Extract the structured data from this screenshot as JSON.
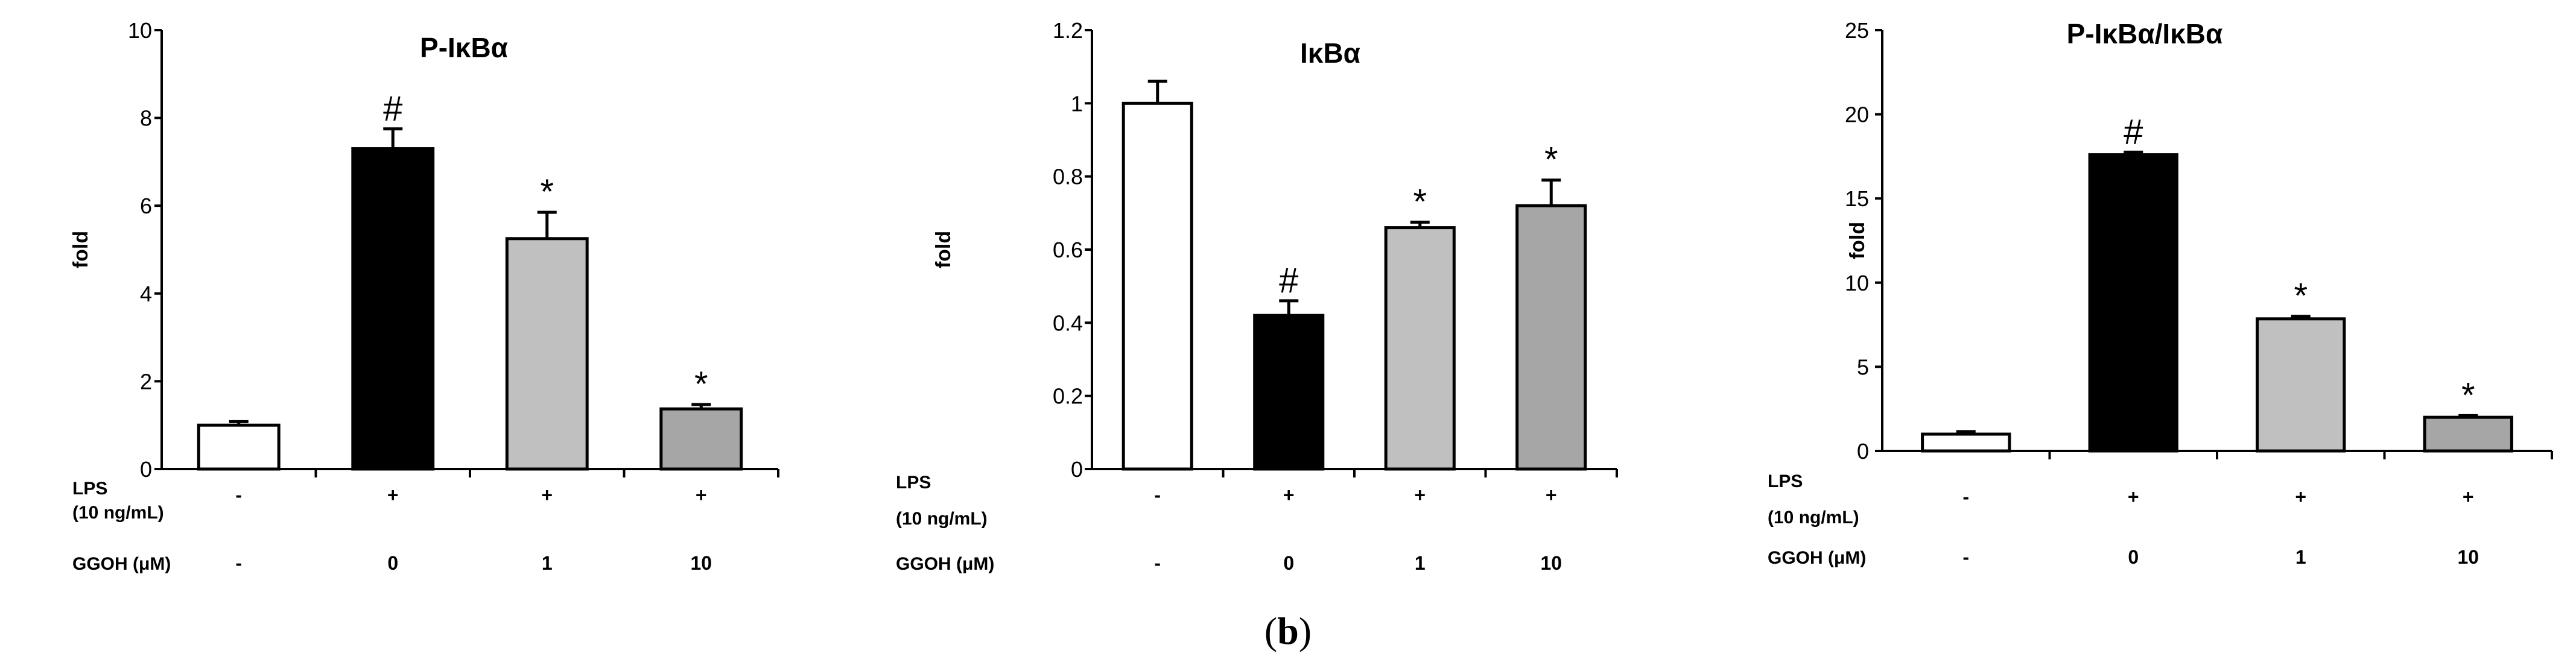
{
  "caption": {
    "open": "(",
    "letter": "b",
    "close": ")"
  },
  "colors": {
    "control": "#ffffff",
    "lps_only": "#000000",
    "ggoh_1": "#c0c0c0",
    "ggoh_10": "#a6a6a6",
    "text": "#000000"
  },
  "chart_data": [
    {
      "type": "bar",
      "title": "P-IκBα",
      "ylabel": "fold",
      "ylim": [
        0,
        10
      ],
      "yticks": [
        "0",
        "2",
        "4",
        "6",
        "8",
        "10"
      ],
      "ytick_values": [
        0,
        2,
        4,
        6,
        8,
        10
      ],
      "rows": [
        {
          "label1": "LPS",
          "label2": "(10 ng/mL)",
          "values": [
            "-",
            "+",
            "+",
            "+"
          ]
        },
        {
          "label1": "GGOH (μM)",
          "label2": "",
          "values": [
            "-",
            "0",
            "1",
            "10"
          ]
        }
      ],
      "series": [
        {
          "name": "fold",
          "values": [
            1.0,
            7.3,
            5.25,
            1.37
          ],
          "errors": [
            0.08,
            0.45,
            0.6,
            0.1
          ]
        }
      ],
      "markers": [
        "",
        "#",
        "*",
        "*"
      ]
    },
    {
      "type": "bar",
      "title": "IκBα",
      "ylabel": "fold",
      "ylim": [
        0,
        1.2
      ],
      "yticks": [
        "0",
        "0.2",
        "0.4",
        "0.6",
        "0.8",
        "1",
        "1.2"
      ],
      "ytick_values": [
        0,
        0.2,
        0.4,
        0.6,
        0.8,
        1.0,
        1.2
      ],
      "rows": [
        {
          "label1": "LPS",
          "label2": "(10 ng/mL)",
          "values": [
            "-",
            "+",
            "+",
            "+"
          ]
        },
        {
          "label1": "GGOH (μM)",
          "label2": "",
          "values": [
            "-",
            "0",
            "1",
            "10"
          ]
        }
      ],
      "series": [
        {
          "name": "fold",
          "values": [
            1.0,
            0.42,
            0.66,
            0.72
          ],
          "errors": [
            0.06,
            0.04,
            0.015,
            0.07
          ]
        }
      ],
      "markers": [
        "",
        "#",
        "*",
        "*"
      ]
    },
    {
      "type": "bar",
      "title": "P-IκBα/IκBα",
      "ylabel": "fold",
      "ylim": [
        0,
        25
      ],
      "yticks": [
        "0",
        "5",
        "10",
        "15",
        "20",
        "25"
      ],
      "ytick_values": [
        0,
        5,
        10,
        15,
        20,
        25
      ],
      "rows": [
        {
          "label1": "LPS",
          "label2": "(10 ng/mL)",
          "values": [
            "-",
            "+",
            "+",
            "+"
          ]
        },
        {
          "label1": "GGOH (μM)",
          "label2": "",
          "values": [
            "-",
            "0",
            "1",
            "10"
          ]
        }
      ],
      "series": [
        {
          "name": "fold",
          "values": [
            1.0,
            17.6,
            7.85,
            2.0
          ],
          "errors": [
            0.15,
            0.15,
            0.15,
            0.1
          ]
        }
      ],
      "markers": [
        "",
        "#",
        "*",
        "*"
      ]
    }
  ]
}
